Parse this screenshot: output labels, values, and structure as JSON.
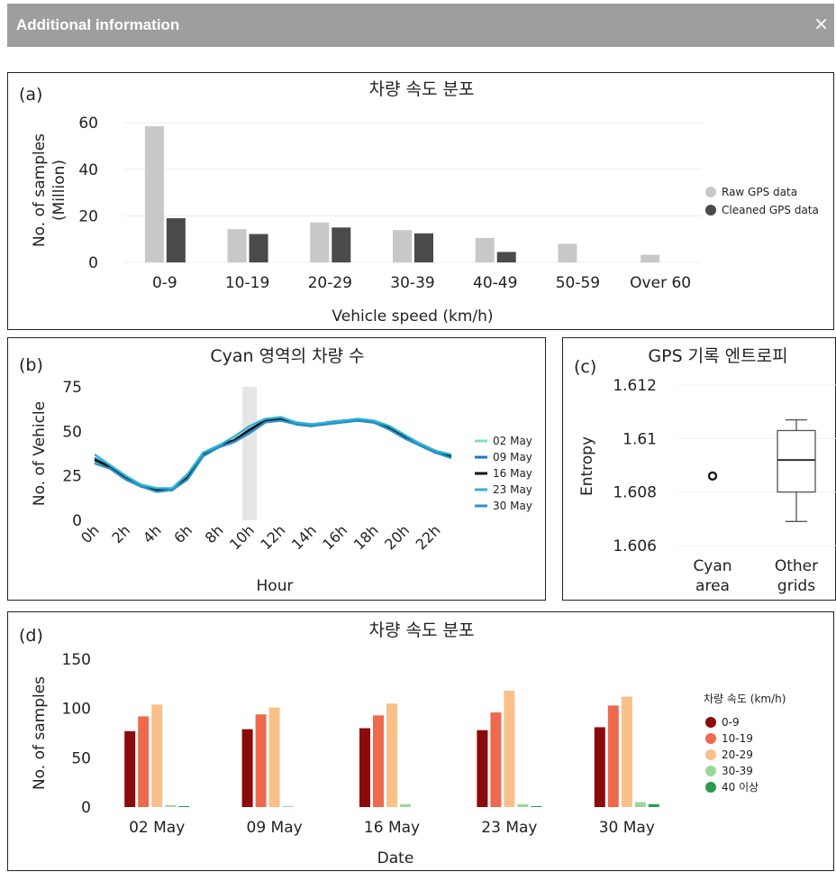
{
  "header": {
    "title": "Additional information",
    "close": "×"
  },
  "charts": {
    "a": {
      "letter": "(a)",
      "chart_data": {
        "type": "bar",
        "title": "차량 속도 분포",
        "xlabel": "Vehicle speed (km/h)",
        "ylabel": "No. of samples",
        "ylabel2": "(Million)",
        "categories": [
          "0-9",
          "10-19",
          "20-29",
          "30-39",
          "40-49",
          "50-59",
          "Over 60"
        ],
        "yticks": [
          0,
          20,
          40,
          60
        ],
        "ylim": [
          0,
          62
        ],
        "grid": false,
        "legend_position": "right",
        "series": [
          {
            "name": "Raw GPS data",
            "color": "#c8c8c8",
            "values": [
              58.5,
              14.3,
              17.2,
              13.9,
              10.5,
              8.0,
              3.3
            ]
          },
          {
            "name": "Cleaned GPS data",
            "color": "#4a4a4a",
            "values": [
              19.0,
              12.2,
              15.0,
              12.5,
              4.5,
              null,
              null
            ]
          }
        ]
      }
    },
    "b": {
      "letter": "(b)",
      "chart_data": {
        "type": "line",
        "title": "Cyan 영역의 차량 수",
        "xlabel": "Hour",
        "ylabel": "No. of Vehicle",
        "x": [
          0,
          1,
          2,
          3,
          4,
          5,
          6,
          7,
          8,
          9,
          10,
          11,
          12,
          13,
          14,
          15,
          16,
          17,
          18,
          19,
          20,
          21,
          22,
          23
        ],
        "xticklabels": [
          "0h",
          "2h",
          "4h",
          "6h",
          "8h",
          "10h",
          "12h",
          "14h",
          "16h",
          "18h",
          "20h",
          "22h"
        ],
        "yticks": [
          0,
          25,
          50,
          75
        ],
        "ylim": [
          0,
          75
        ],
        "highlight_hour": 10,
        "legend_position": "right",
        "series": [
          {
            "name": "02 May",
            "color": "#7ee0b8",
            "values": [
              33,
              29,
              23,
              19,
              17,
              18,
              25,
              38,
              42,
              45,
              51,
              56,
              57,
              54,
              53,
              55,
              56,
              56,
              55,
              52,
              48,
              42,
              38,
              35
            ]
          },
          {
            "name": "09 May",
            "color": "#1e73be",
            "values": [
              35,
              30,
              24,
              20,
              17,
              17,
              24,
              38,
              41,
              44,
              50,
              57,
              57,
              54,
              53,
              55,
              56,
              57,
              55,
              52,
              47,
              43,
              39,
              36
            ]
          },
          {
            "name": "16 May",
            "color": "#111111",
            "values": [
              34,
              30,
              24,
              19,
              17,
              17,
              24,
              37,
              42,
              45,
              51,
              56,
              57,
              54,
              53,
              55,
              56,
              56,
              55,
              52,
              47,
              42,
              38,
              36
            ]
          },
          {
            "name": "23 May",
            "color": "#29b6d6",
            "values": [
              37,
              31,
              25,
              20,
              18,
              18,
              26,
              38,
              42,
              47,
              53,
              57,
              58,
              55,
              54,
              55,
              56,
              57,
              56,
              53,
              48,
              43,
              39,
              37
            ]
          },
          {
            "name": "30 May",
            "color": "#2a8fc9",
            "values": [
              32,
              29,
              23,
              19,
              16,
              17,
              23,
              36,
              41,
              44,
              49,
              55,
              56,
              54,
              53,
              54,
              55,
              56,
              55,
              51,
              46,
              42,
              38,
              35
            ]
          }
        ]
      }
    },
    "c": {
      "letter": "(c)",
      "chart_data": {
        "type": "box",
        "title": "GPS 기록 엔트로피",
        "ylabel": "Entropy",
        "yticks": [
          "1.606",
          "1.608",
          "1.61",
          "1.612"
        ],
        "ylim": [
          1.606,
          1.612
        ],
        "categories": [
          [
            "Cyan",
            "area"
          ],
          [
            "Other",
            "grids"
          ]
        ],
        "cyan_value": 1.6086,
        "other": {
          "min": 1.6069,
          "q1": 1.608,
          "median": 1.6092,
          "q3": 1.6103,
          "max": 1.6107
        }
      }
    },
    "d": {
      "letter": "(d)",
      "chart_data": {
        "type": "bar",
        "title": "차량 속도 분포",
        "xlabel": "Date",
        "ylabel": "No. of samples",
        "categories": [
          "02 May",
          "09 May",
          "16 May",
          "23 May",
          "30 May"
        ],
        "yticks": [
          0,
          50,
          100,
          150
        ],
        "ylim": [
          0,
          150
        ],
        "grid": false,
        "legend_title": "차량 속도 (km/h)",
        "legend_position": "right",
        "series": [
          {
            "name": "0-9",
            "color": "#8b0a0a",
            "values": [
              77,
              79,
              80,
              78,
              81
            ]
          },
          {
            "name": "10-19",
            "color": "#ee6a4e",
            "values": [
              92,
              94,
              93,
              96,
              103
            ]
          },
          {
            "name": "20-29",
            "color": "#f9c08a",
            "values": [
              104,
              101,
              105,
              118,
              112
            ]
          },
          {
            "name": "30-39",
            "color": "#9ad89a",
            "values": [
              2,
              1,
              3,
              3,
              5
            ]
          },
          {
            "name": "40 이상",
            "color": "#2e9a4a",
            "values": [
              1,
              0,
              0,
              1,
              3
            ]
          }
        ]
      }
    }
  }
}
